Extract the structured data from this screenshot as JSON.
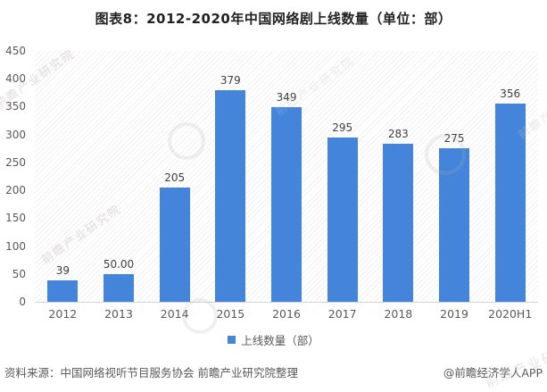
{
  "title": "图表8：2012-2020年中国网络剧上线数量（单位：部）",
  "chart_data": {
    "type": "bar",
    "title": "图表8：2012-2020年中国网络剧上线数量（单位：部）",
    "categories": [
      "2012",
      "2013",
      "2014",
      "2015",
      "2016",
      "2017",
      "2018",
      "2019",
      "2020H1"
    ],
    "values": [
      39,
      50,
      205,
      379,
      349,
      295,
      283,
      275,
      356
    ],
    "value_labels": [
      "39",
      "50.00",
      "205",
      "379",
      "349",
      "295",
      "283",
      "275",
      "356"
    ],
    "xlabel": "",
    "ylabel": "",
    "ylim": [
      0,
      450
    ],
    "y_ticks": [
      450,
      400,
      350,
      300,
      250,
      200,
      150,
      100,
      50,
      0
    ],
    "grid": false,
    "legend_entries": [
      "上线数量（部）"
    ],
    "legend_position": "bottom",
    "bar_color": "#4485db"
  },
  "legend": {
    "label": "上线数量（部）",
    "marker_color": "#4485db"
  },
  "footer": {
    "source": "资料来源：中国网络视听节目服务协会 前瞻产业研究院整理",
    "credit": "@前瞻经济学人APP"
  },
  "watermark": {
    "text": "前瞻产业研究院"
  },
  "colors": {
    "bar": "#4485db",
    "title_text": "#222222",
    "axis_text": "#595959",
    "value_text": "#404040",
    "axis_line": "#d5d5d5"
  }
}
